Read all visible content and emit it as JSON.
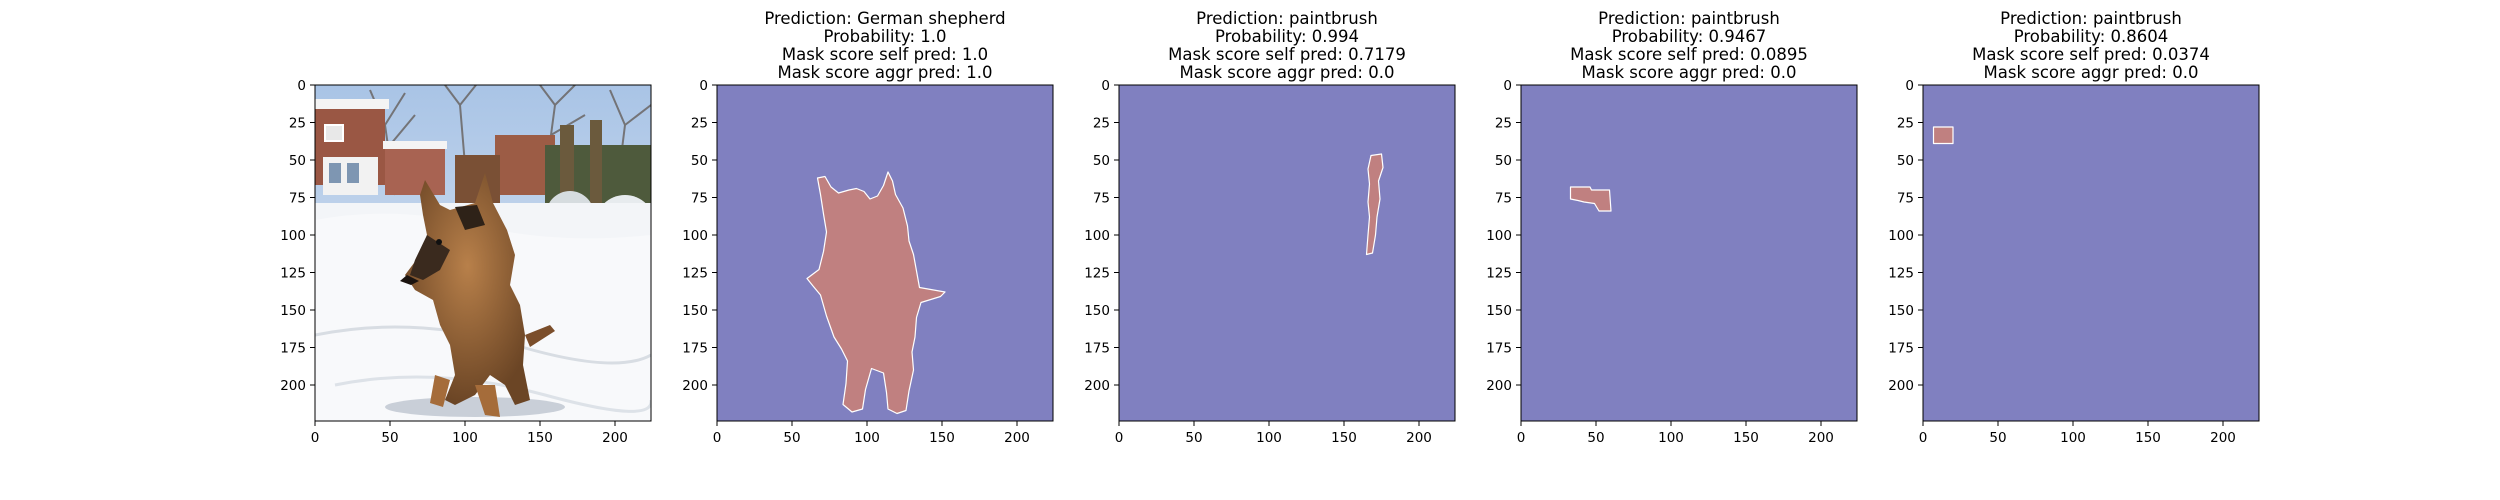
{
  "chart_data": {
    "type": "image-grid",
    "xlim": [
      0,
      224
    ],
    "ylim": [
      0,
      224
    ],
    "xticks": [
      0,
      50,
      100,
      150,
      200
    ],
    "yticks": [
      0,
      25,
      50,
      75,
      100,
      125,
      150,
      175,
      200
    ],
    "colors": {
      "background_mask": "#8080c0",
      "region_mask": "#c08080",
      "region_outline": "#ffffff"
    },
    "panels": [
      {
        "kind": "photo",
        "title_lines": [],
        "photo_description": "German shepherd dog sitting in snow in a garden",
        "regions": []
      },
      {
        "kind": "mask",
        "title_lines": [
          "Prediction: German shepherd",
          "Probability: 1.0",
          "Mask score self pred: 1.0",
          "Mask score aggr pred: 1.0"
        ],
        "regions": [
          {
            "points": [
              [
                67,
                62
              ],
              [
                72,
                61
              ],
              [
                76,
                68
              ],
              [
                81,
                72
              ],
              [
                88,
                70
              ],
              [
                93,
                69
              ],
              [
                98,
                71
              ],
              [
                102,
                76
              ],
              [
                107,
                74
              ],
              [
                111,
                67
              ],
              [
                114,
                58
              ],
              [
                117,
                64
              ],
              [
                119,
                73
              ],
              [
                124,
                82
              ],
              [
                127,
                94
              ],
              [
                128,
                104
              ],
              [
                131,
                113
              ],
              [
                133,
                124
              ],
              [
                135,
                135
              ],
              [
                152,
                138
              ],
              [
                149,
                141
              ],
              [
                136,
                145
              ],
              [
                133,
                155
              ],
              [
                132,
                168
              ],
              [
                130,
                178
              ],
              [
                131,
                190
              ],
              [
                128,
                204
              ],
              [
                126,
                217
              ],
              [
                120,
                219
              ],
              [
                114,
                216
              ],
              [
                113,
                205
              ],
              [
                111,
                192
              ],
              [
                103,
                189
              ],
              [
                99,
                203
              ],
              [
                97,
                216
              ],
              [
                90,
                218
              ],
              [
                84,
                213
              ],
              [
                86,
                199
              ],
              [
                87,
                184
              ],
              [
                83,
                176
              ],
              [
                78,
                168
              ],
              [
                73,
                154
              ],
              [
                69,
                140
              ],
              [
                64,
                134
              ],
              [
                60,
                129
              ],
              [
                68,
                123
              ],
              [
                71,
                111
              ],
              [
                73,
                98
              ],
              [
                71,
                86
              ],
              [
                69,
                73
              ]
            ]
          }
        ]
      },
      {
        "kind": "mask",
        "title_lines": [
          "Prediction: paintbrush",
          "Probability: 0.994",
          "Mask score self pred: 0.7179",
          "Mask score aggr pred: 0.0"
        ],
        "regions": [
          {
            "points": [
              [
                168,
                47
              ],
              [
                175,
                46
              ],
              [
                176,
                55
              ],
              [
                173,
                64
              ],
              [
                174,
                76
              ],
              [
                172,
                88
              ],
              [
                171,
                100
              ],
              [
                169,
                112
              ],
              [
                165,
                113
              ],
              [
                166,
                100
              ],
              [
                167,
                88
              ],
              [
                166,
                78
              ],
              [
                167,
                66
              ],
              [
                166,
                56
              ]
            ]
          }
        ]
      },
      {
        "kind": "mask",
        "title_lines": [
          "Prediction: paintbrush",
          "Probability: 0.9467",
          "Mask score self pred: 0.0895",
          "Mask score aggr pred: 0.0"
        ],
        "regions": [
          {
            "points": [
              [
                33,
                68
              ],
              [
                46,
                68
              ],
              [
                47,
                70
              ],
              [
                59,
                70
              ],
              [
                60,
                84
              ],
              [
                52,
                84
              ],
              [
                49,
                79
              ],
              [
                42,
                78
              ],
              [
                38,
                77
              ],
              [
                33,
                76
              ]
            ]
          }
        ]
      },
      {
        "kind": "mask",
        "title_lines": [
          "Prediction: paintbrush",
          "Probability: 0.8604",
          "Mask score self pred: 0.0374",
          "Mask score aggr pred: 0.0"
        ],
        "regions": [
          {
            "points": [
              [
                7,
                28
              ],
              [
                20,
                28
              ],
              [
                20,
                39
              ],
              [
                7,
                39
              ]
            ]
          }
        ]
      }
    ]
  }
}
